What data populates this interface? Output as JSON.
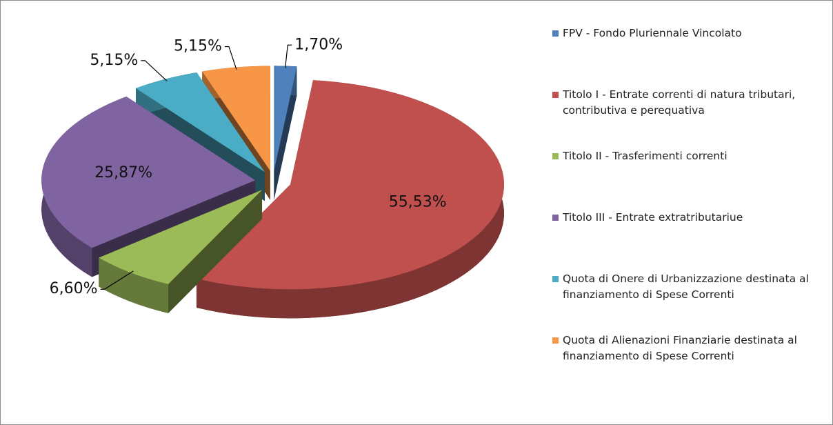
{
  "chart_data": {
    "type": "pie",
    "categories": [
      "FPV - Fondo Pluriennale Vincolato",
      "Titolo I - Entrate correnti di natura tributari, contributiva e perequativa",
      "Titolo II - Trasferimenti correnti",
      "Titolo III - Entrate extratributariue",
      "Quota di Onere di Urbanizzazione destinata al finanziamento di Spese Correnti",
      "Quota di Alienazioni Finanziarie destinata al finanziamento di Spese Correnti"
    ],
    "values": [
      1.7,
      55.53,
      6.6,
      25.87,
      5.15,
      5.15
    ],
    "value_labels": [
      "1,70%",
      "55,53%",
      "6,60%",
      "25,87%",
      "5,15%",
      "5,15%"
    ],
    "colors": [
      "#4f81bd",
      "#c0504d",
      "#9bbb59",
      "#8064a2",
      "#4bacc6",
      "#f79646"
    ],
    "legend": "right"
  }
}
